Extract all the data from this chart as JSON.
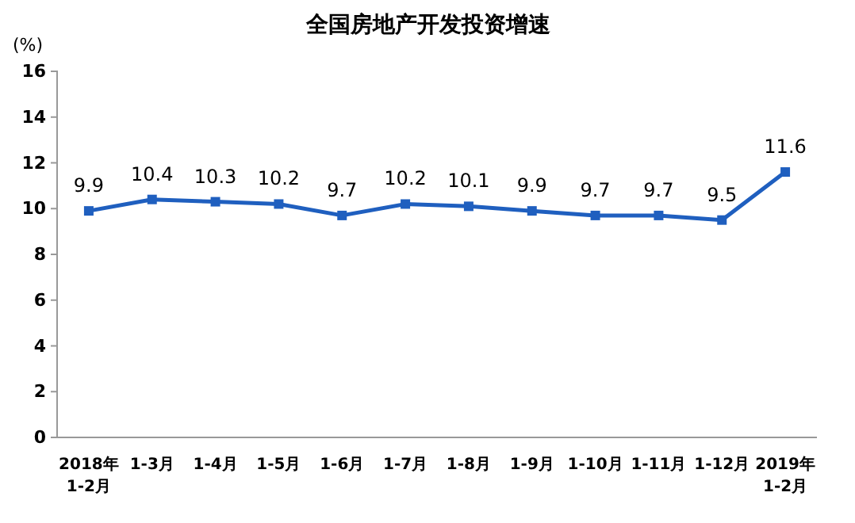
{
  "chart_data": {
    "type": "line",
    "title": "全国房地产开发投资增速",
    "ylabel": "(%)",
    "categories": [
      "2018年\n1-2月",
      "1-3月",
      "1-4月",
      "1-5月",
      "1-6月",
      "1-7月",
      "1-8月",
      "1-9月",
      "1-10月",
      "1-11月",
      "1-12月",
      "2019年\n1-2月"
    ],
    "series": [
      {
        "color": "#1f5fbf",
        "values": [
          9.9,
          10.4,
          10.3,
          10.2,
          9.7,
          10.2,
          10.1,
          9.9,
          9.7,
          9.7,
          9.5,
          11.6
        ]
      }
    ],
    "ylim": [
      0,
      16
    ],
    "yticks": [
      0,
      2,
      4,
      6,
      8,
      10,
      12,
      14,
      16
    ],
    "grid": false,
    "marker": "square",
    "line_style": "solid",
    "data_labels": true
  }
}
